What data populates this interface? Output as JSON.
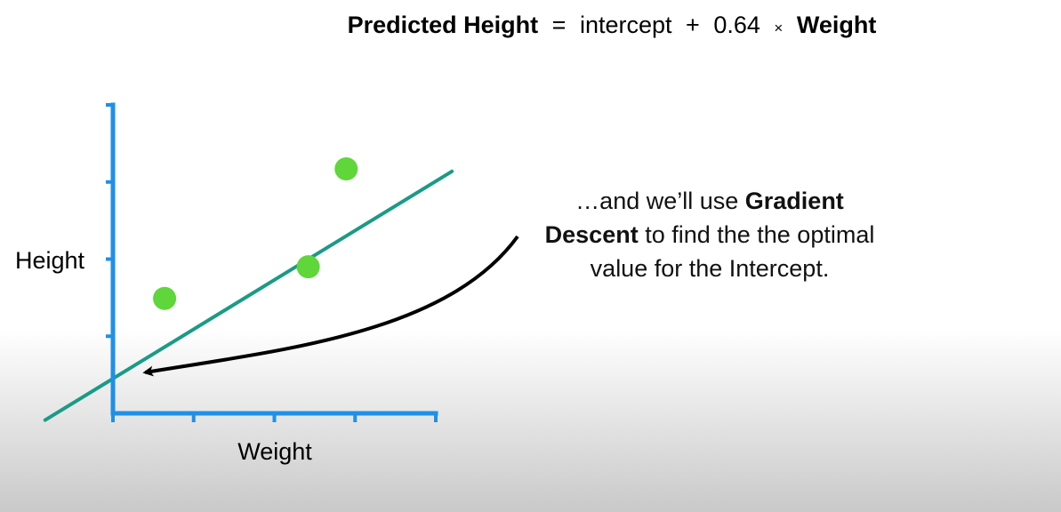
{
  "equation": {
    "lhs": "Predicted Height",
    "equals": "=",
    "term1": "intercept",
    "plus": "+",
    "coefficient": "0.64",
    "times": "×",
    "rhs": "Weight"
  },
  "explanation": {
    "part1": "…and we’ll use ",
    "bold": "Gradient Descent",
    "part2": " to find the the optimal value for the Intercept."
  },
  "colors": {
    "axis": "#1e90e8",
    "fit_line": "#1a9b86",
    "points": "#5fd63a",
    "arrow": "#000000"
  },
  "chart_data": {
    "type": "scatter",
    "title": "",
    "xlabel": "Weight",
    "ylabel": "Height",
    "xlim": [
      0,
      4
    ],
    "ylim": [
      0,
      4
    ],
    "x_tick_count": 4,
    "y_tick_count": 4,
    "tick_labels_shown": false,
    "points": [
      {
        "x": 0.64,
        "y": 1.49
      },
      {
        "x": 2.42,
        "y": 1.9
      },
      {
        "x": 2.89,
        "y": 3.17
      }
    ],
    "fit_line": {
      "slope": 0.64,
      "intercept": 0.45,
      "x_start": -0.84,
      "x_end": 4.2
    },
    "annotation": {
      "type": "arrow",
      "points_to": "intercept",
      "target": {
        "x": 0.4,
        "y": 0.53
      }
    }
  }
}
